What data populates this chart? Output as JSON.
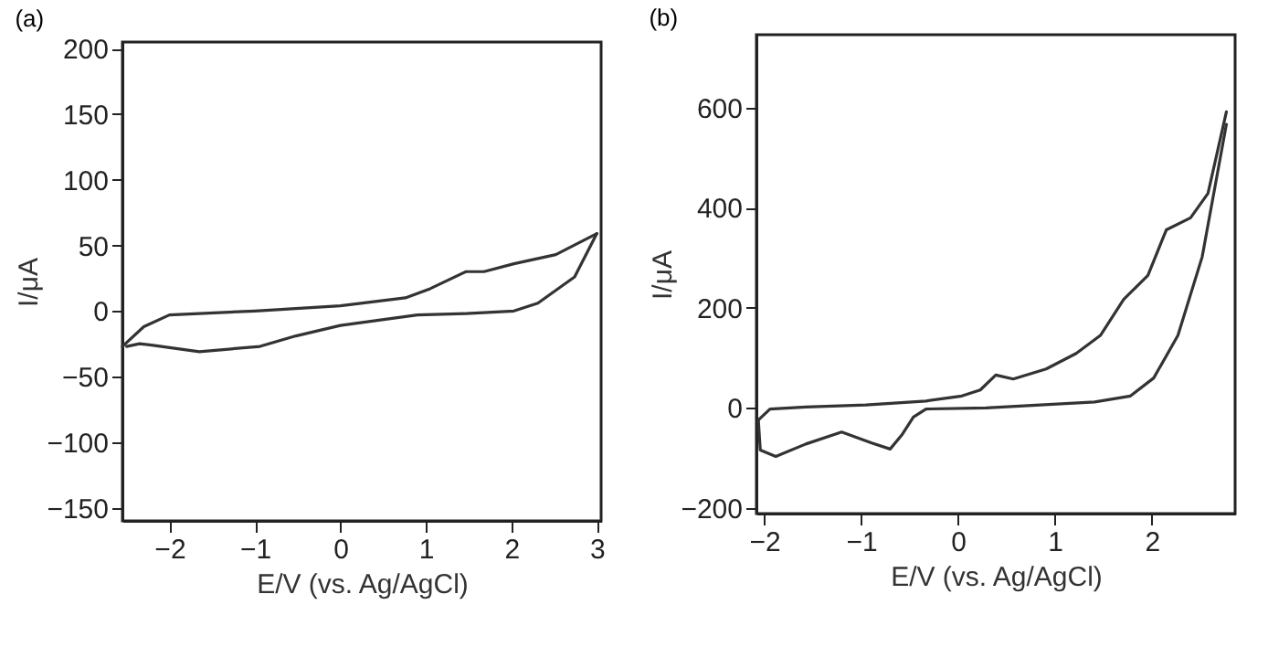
{
  "chart_data": [
    {
      "type": "line",
      "title": "(a)",
      "xlabel": "E/V (vs. Ag/AgCl)",
      "ylabel": "I/μA",
      "xlim": [
        -2.55,
        3.05
      ],
      "ylim": [
        -160,
        205
      ],
      "xticks": [
        -2,
        -1,
        0,
        1,
        2,
        3
      ],
      "yticks": [
        -150,
        -100,
        -50,
        0,
        50,
        100,
        150,
        200
      ],
      "series": [
        {
          "color": "#333333",
          "x": [
            -2.55,
            -2.3,
            -2.0,
            -1.0,
            0.0,
            0.76,
            1.05,
            1.47,
            1.68,
            2.03,
            2.52,
            3.0
          ],
          "values": [
            -27,
            -12,
            -3,
            0,
            4,
            10,
            17,
            30,
            30,
            36,
            43,
            59
          ]
        },
        {
          "color": "#333333",
          "x": [
            3.0,
            2.74,
            2.31,
            2.03,
            1.47,
            0.9,
            0.0,
            -0.52,
            -0.94,
            -1.65,
            -2.21,
            -2.35,
            -2.5
          ],
          "values": [
            59,
            26,
            6,
            0,
            -2,
            -3,
            -11,
            -19,
            -27,
            -31,
            -26,
            -25,
            -27
          ]
        }
      ]
    },
    {
      "type": "line",
      "title": "(b)",
      "xlabel": "E/V (vs. Ag/AgCl)",
      "ylabel": "I/μA",
      "xlim": [
        -2.08,
        2.86
      ],
      "ylim": [
        -211,
        746
      ],
      "xticks": [
        -2,
        -1,
        0,
        1,
        2
      ],
      "yticks": [
        -200,
        0,
        200,
        400,
        600
      ],
      "series": [
        {
          "color": "#333333",
          "x": [
            -2.06,
            -1.94,
            -1.57,
            -0.95,
            -0.33,
            0.04,
            0.23,
            0.39,
            0.57,
            0.91,
            1.22,
            1.47,
            1.71,
            1.96,
            2.15,
            2.4,
            2.58,
            2.77
          ],
          "values": [
            -24,
            -2,
            2,
            6,
            14,
            24,
            36,
            66,
            58,
            78,
            109,
            145,
            217,
            265,
            356,
            380,
            429,
            592
          ]
        },
        {
          "color": "#333333",
          "x": [
            2.77,
            2.52,
            2.27,
            2.02,
            1.78,
            1.41,
            0.29,
            -0.33,
            -0.46,
            -0.58,
            -0.7,
            -0.89,
            -1.2,
            -1.57,
            -1.88,
            -2.04,
            -2.06
          ],
          "values": [
            567,
            302,
            145,
            60,
            24,
            12,
            0,
            -2,
            -18,
            -54,
            -82,
            -70,
            -48,
            -72,
            -97,
            -84,
            -24
          ]
        }
      ]
    }
  ]
}
